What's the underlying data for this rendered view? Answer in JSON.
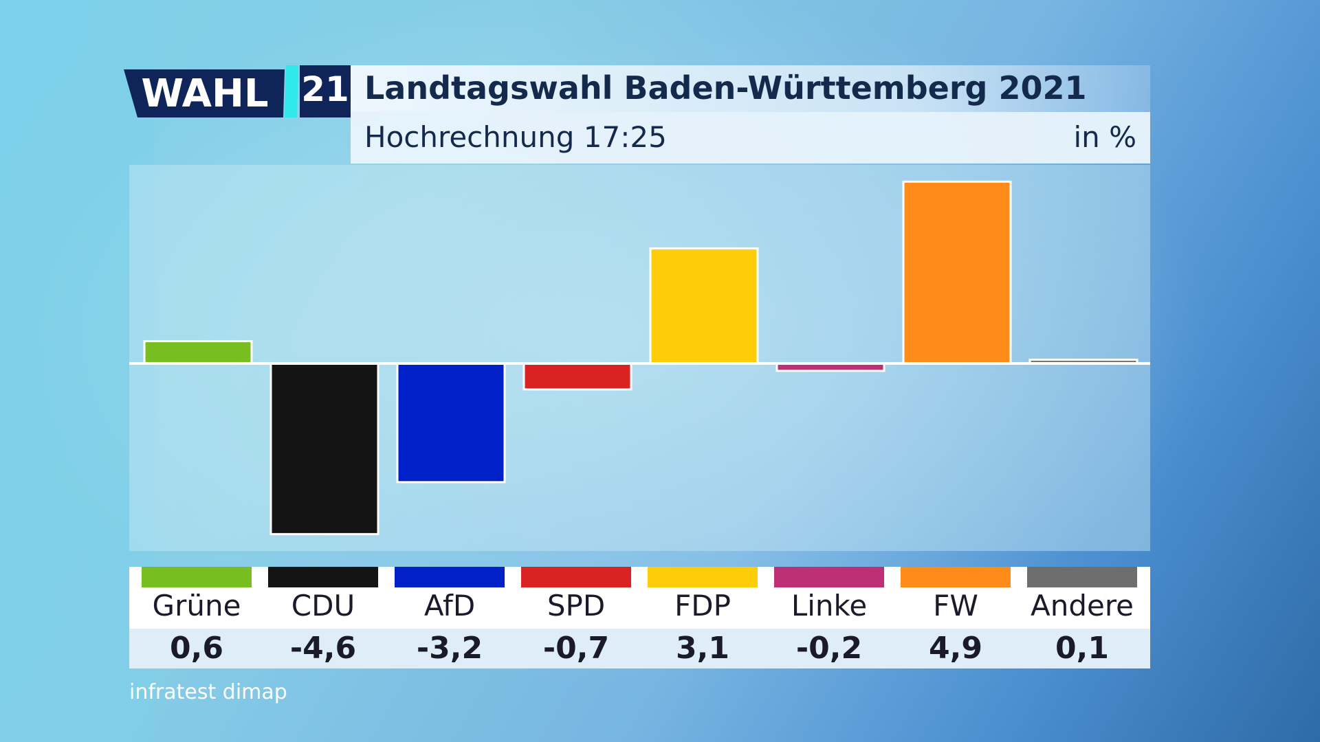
{
  "header": {
    "logo_word": "WAHL",
    "logo_number": "21",
    "title": "Landtagswahl Baden-Württemberg 2021",
    "subtitle": "Hochrechnung 17:25",
    "unit": "in %"
  },
  "source": "infratest dimap",
  "colors": {
    "title_text": "#142a4c",
    "logo_navy": "#0f2458",
    "logo_cyan": "#2ee8ea"
  },
  "chart_data": {
    "type": "bar",
    "title": "Landtagswahl Baden-Württemberg 2021",
    "subtitle": "Hochrechnung 17:25",
    "unit": "in %",
    "categories": [
      "Grüne",
      "CDU",
      "AfD",
      "SPD",
      "FDP",
      "Linke",
      "FW",
      "Andere"
    ],
    "values": [
      0.6,
      -4.6,
      -3.2,
      -0.7,
      3.1,
      -0.2,
      4.9,
      0.1
    ],
    "value_labels": [
      "0,6",
      "-4,6",
      "-3,2",
      "-0,7",
      "3,1",
      "-0,2",
      "4,9",
      "0,1"
    ],
    "colors": [
      "#78be20",
      "#141414",
      "#0020c8",
      "#d92222",
      "#ffcc0a",
      "#be3075",
      "#ff8c1a",
      "#6e6e6e"
    ],
    "ylim": [
      -5,
      5
    ],
    "grid": false,
    "legend": "bottom"
  }
}
